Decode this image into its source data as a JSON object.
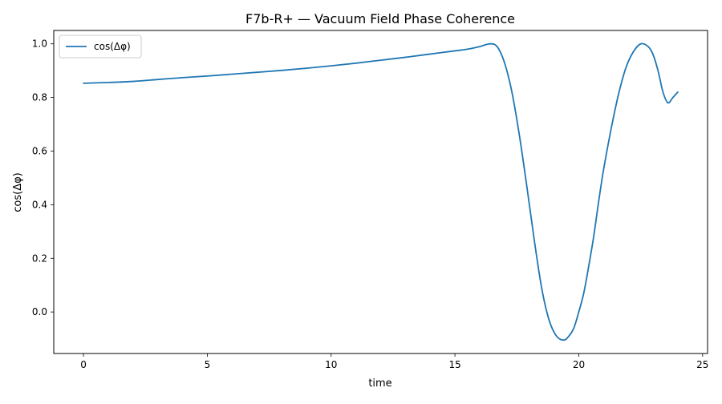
{
  "chart_data": {
    "type": "line",
    "title": "F7b-R+ — Vacuum Field Phase Coherence",
    "xlabel": "time",
    "ylabel": "cos(Δφ)",
    "xlim": [
      -1.2,
      25.2
    ],
    "ylim": [
      -0.155,
      1.05
    ],
    "xticks": [
      0,
      5,
      10,
      15,
      20,
      25
    ],
    "yticks": [
      0.0,
      0.2,
      0.4,
      0.6,
      0.8,
      1.0
    ],
    "xtick_labels": [
      "0",
      "5",
      "10",
      "15",
      "20",
      "25"
    ],
    "ytick_labels": [
      "0.0",
      "0.2",
      "0.4",
      "0.6",
      "0.8",
      "1.0"
    ],
    "grid": false,
    "legend_position": "top-left",
    "series": [
      {
        "name": "cos(Δφ)",
        "color": "#1f77b4",
        "x": [
          0,
          1,
          2,
          3,
          4,
          5,
          6,
          7,
          8,
          9,
          10,
          11,
          12,
          13,
          14,
          15,
          15.5,
          16,
          16.4,
          16.7,
          17.0,
          17.3,
          17.6,
          17.9,
          18.2,
          18.5,
          18.8,
          19.1,
          19.4,
          19.6,
          19.8,
          20.0,
          20.2,
          20.4,
          20.6,
          20.8,
          21.0,
          21.3,
          21.6,
          21.9,
          22.2,
          22.5,
          22.8,
          23.0,
          23.2,
          23.4,
          23.6,
          23.8,
          24.0
        ],
        "y": [
          0.853,
          0.856,
          0.86,
          0.867,
          0.874,
          0.88,
          0.887,
          0.894,
          0.901,
          0.909,
          0.918,
          0.928,
          0.939,
          0.95,
          0.962,
          0.974,
          0.98,
          0.99,
          1.0,
          0.99,
          0.93,
          0.82,
          0.66,
          0.47,
          0.27,
          0.09,
          -0.03,
          -0.09,
          -0.105,
          -0.09,
          -0.06,
          0.0,
          0.07,
          0.17,
          0.28,
          0.41,
          0.53,
          0.68,
          0.81,
          0.91,
          0.97,
          1.0,
          0.99,
          0.96,
          0.9,
          0.82,
          0.78,
          0.8,
          0.82
        ]
      }
    ]
  }
}
